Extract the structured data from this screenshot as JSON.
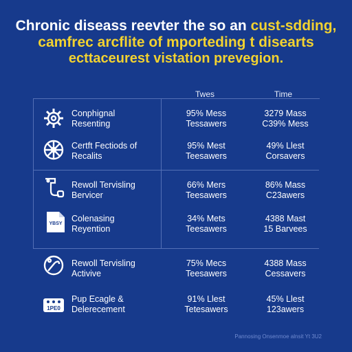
{
  "title": {
    "line1_white": "Chronic diseass reevter the so an",
    "line1_yellow": "cust-sdding,",
    "line2": "camfrec arcflite of mporteding t disearts",
    "line3": "ecttaceurest vistation prevegion."
  },
  "columns": [
    "Twes",
    "Time"
  ],
  "rows": [
    {
      "icon": "gear-icon",
      "label": [
        "Conphignal",
        "Resenting"
      ],
      "v1": [
        "95% Mess",
        "Tessawers"
      ],
      "v2": [
        "3279 Mass",
        "C39% Mess"
      ]
    },
    {
      "icon": "wheel-icon",
      "label": [
        "Certft Fectiods of",
        "Recalits"
      ],
      "v1": [
        "95% Mest",
        "Teesawers"
      ],
      "v2": [
        "49% Llest",
        "Corsavers"
      ]
    },
    {
      "icon": "medical-device-icon",
      "label": [
        "Rewoll Tervisling",
        "Bervicer"
      ],
      "v1": [
        "66% Mers",
        "Teesawers"
      ],
      "v2": [
        "86% Mass",
        "C23awers"
      ]
    },
    {
      "icon": "document-icon",
      "label": [
        "Colenasing",
        "Reyention"
      ],
      "v1": [
        "34% Mets",
        "Teesawers"
      ],
      "v2": [
        "4388 Mast",
        "15 Barvees"
      ]
    },
    {
      "icon": "stethoscope-icon",
      "label": [
        "Rewoll Tervisling",
        "Activive"
      ],
      "v1": [
        "75% Mecs",
        "Teesawers"
      ],
      "v2": [
        "4388 Mass",
        "Cessavers"
      ]
    },
    {
      "icon": "pill-pack-icon",
      "label": [
        "Pup Ecagle &",
        "Delerecement"
      ],
      "v1": [
        "91% Llest",
        "Tetesawers"
      ],
      "v2": [
        "45% Llest",
        "123awers"
      ]
    }
  ],
  "footer": "Pannosing Onsenmoe alnsit Yt 3U2",
  "icon_badges": {
    "document": "YBSY",
    "pill_pack": "1PE0"
  },
  "colors": {
    "background": "#173a8c",
    "accent": "#f2d230",
    "text": "#ffffff",
    "divider": "#5470b6"
  }
}
